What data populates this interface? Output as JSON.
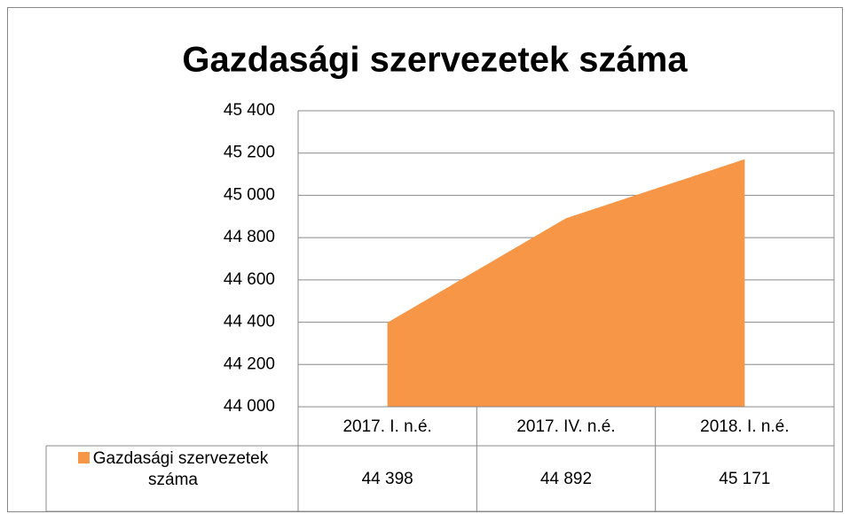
{
  "chart_data": {
    "type": "area",
    "title": "Gazdasági szervezetek száma",
    "categories": [
      "2017. I. n.é.",
      "2017. IV. n.é.",
      "2018. I. n.é."
    ],
    "series": [
      {
        "name": "Gazdasági szervezetek száma",
        "color": "#f79646",
        "values": [
          44398,
          44892,
          45171
        ],
        "value_labels": [
          "44 398",
          "44 892",
          "45 171"
        ]
      }
    ],
    "ylim": [
      44000,
      45400
    ],
    "yticks": [
      {
        "value": 44000,
        "label": "44 000"
      },
      {
        "value": 44200,
        "label": "44 200"
      },
      {
        "value": 44400,
        "label": "44 400"
      },
      {
        "value": 44600,
        "label": "44 600"
      },
      {
        "value": 44800,
        "label": "44 800"
      },
      {
        "value": 45000,
        "label": "45 000"
      },
      {
        "value": 45200,
        "label": "45 200"
      },
      {
        "value": 45400,
        "label": "45 400"
      }
    ],
    "grid": true
  }
}
